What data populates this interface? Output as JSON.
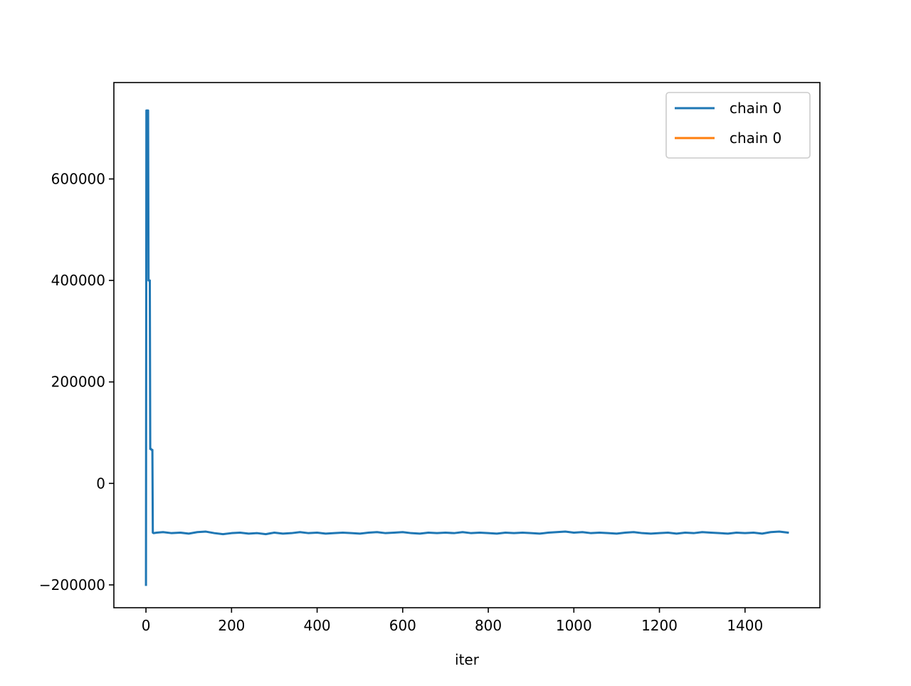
{
  "chart_data": {
    "type": "line",
    "title": "",
    "xlabel": "iter",
    "ylabel": "",
    "xlim": [
      -75,
      1575
    ],
    "ylim": [
      -245000,
      790000
    ],
    "xticks": [
      0,
      200,
      400,
      600,
      800,
      1000,
      1200,
      1400
    ],
    "xtick_labels": [
      "0",
      "200",
      "400",
      "600",
      "800",
      "1000",
      "1200",
      "1400"
    ],
    "yticks": [
      -200000,
      0,
      200000,
      400000,
      600000
    ],
    "ytick_labels": [
      "−200000",
      "0",
      "200000",
      "400000",
      "600000"
    ],
    "grid": false,
    "legend_position": "top-right",
    "colors": {
      "series_0": "#1f77b4",
      "series_1": "#ff7f0e"
    },
    "series": [
      {
        "name": "chain 0",
        "color": "#1f77b4",
        "x": [
          0,
          1,
          2,
          3,
          4,
          5,
          6,
          7,
          8,
          9,
          10,
          11,
          12,
          13,
          14,
          15,
          16,
          18,
          25,
          40,
          60,
          80,
          100,
          120,
          140,
          160,
          180,
          200,
          220,
          240,
          260,
          280,
          300,
          320,
          340,
          360,
          380,
          400,
          420,
          440,
          460,
          480,
          500,
          520,
          540,
          560,
          580,
          600,
          620,
          640,
          660,
          680,
          700,
          720,
          740,
          760,
          780,
          800,
          820,
          840,
          860,
          880,
          900,
          920,
          940,
          960,
          980,
          1000,
          1020,
          1040,
          1060,
          1080,
          1100,
          1120,
          1140,
          1160,
          1180,
          1200,
          1220,
          1240,
          1260,
          1280,
          1300,
          1320,
          1340,
          1360,
          1380,
          1400,
          1420,
          1440,
          1460,
          1480,
          1500
        ],
        "y": [
          -200000,
          735000,
          735000,
          735000,
          735000,
          735000,
          400000,
          400000,
          400000,
          400000,
          68000,
          68000,
          68000,
          66000,
          66000,
          66000,
          -97000,
          -98000,
          -97000,
          -96000,
          -98000,
          -97000,
          -99000,
          -96000,
          -95000,
          -98000,
          -100000,
          -98000,
          -97000,
          -99000,
          -98000,
          -100000,
          -97000,
          -99000,
          -98000,
          -96000,
          -98000,
          -97000,
          -99000,
          -98000,
          -97000,
          -98000,
          -99000,
          -97000,
          -96000,
          -98000,
          -97000,
          -96000,
          -98000,
          -99000,
          -97000,
          -98000,
          -97000,
          -98000,
          -96000,
          -98000,
          -97000,
          -98000,
          -99000,
          -97000,
          -98000,
          -97000,
          -98000,
          -99000,
          -97000,
          -96000,
          -95000,
          -97000,
          -96000,
          -98000,
          -97000,
          -98000,
          -99000,
          -97000,
          -96000,
          -98000,
          -99000,
          -98000,
          -97000,
          -99000,
          -97000,
          -98000,
          -96000,
          -97000,
          -98000,
          -99000,
          -97000,
          -98000,
          -97000,
          -99000,
          -96000,
          -95000,
          -97000
        ]
      },
      {
        "name": "chain 0",
        "color": "#ff7f0e",
        "x": [],
        "y": []
      }
    ]
  }
}
